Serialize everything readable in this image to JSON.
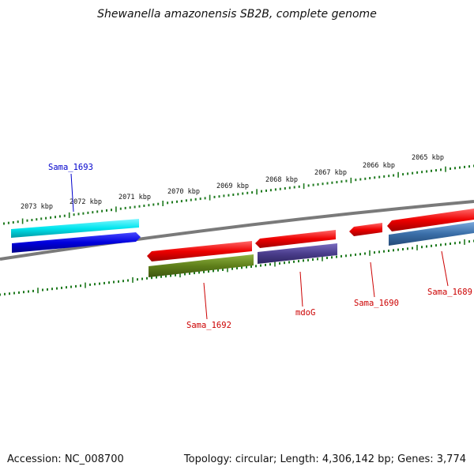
{
  "title": "Shewanella amazonensis SB2B, complete genome",
  "footer": {
    "accession": "Accession: NC_008700",
    "stats": "Topology: circular; Length: 4,306,142 bp; Genes: 3,774"
  },
  "colors": {
    "background": "#ffffff",
    "backbone": "#7a7a7a",
    "tick": "#1f7a1f",
    "red_label": "#cc0000",
    "blue_label": "#0000cc"
  },
  "scale": {
    "tick_labels": [
      "2073 kbp",
      "2072 kbp",
      "2071 kbp",
      "2070 kbp",
      "2069 kbp",
      "2068 kbp",
      "2067 kbp",
      "2066 kbp",
      "2065 kbp"
    ]
  },
  "features": [
    {
      "id": "sama_1693_strand",
      "color": "#00e5ee",
      "row": "outer-top",
      "strand": "plus"
    },
    {
      "id": "sama_1693_cds",
      "color": "#0000dd",
      "row": "outer-bottom",
      "strand": "plus"
    },
    {
      "id": "sama_1692_gene",
      "color": "#ee0000",
      "row": "inner-top",
      "strand": "minus"
    },
    {
      "id": "sama_1692_cds",
      "color": "#5e7f1a",
      "row": "inner-bottom",
      "strand": "minus"
    },
    {
      "id": "mdog_gene",
      "color": "#ee0000",
      "row": "inner-top",
      "strand": "minus"
    },
    {
      "id": "mdog_cds",
      "color": "#4a3d8c",
      "row": "inner-bottom",
      "strand": "minus"
    },
    {
      "id": "sama_1690_gene",
      "color": "#ee0000",
      "row": "inner-top",
      "strand": "minus"
    },
    {
      "id": "sama_1689_gene",
      "color": "#ee0000",
      "row": "inner-top",
      "strand": "minus"
    },
    {
      "id": "sama_1689_cds",
      "color": "#3a6ea8",
      "row": "inner-bottom",
      "strand": "minus"
    }
  ],
  "labels": {
    "sama_1693": "Sama_1693",
    "sama_1692": "Sama_1692",
    "mdog": "mdoG",
    "sama_1690": "Sama_1690",
    "sama_1689": "Sama_1689"
  }
}
